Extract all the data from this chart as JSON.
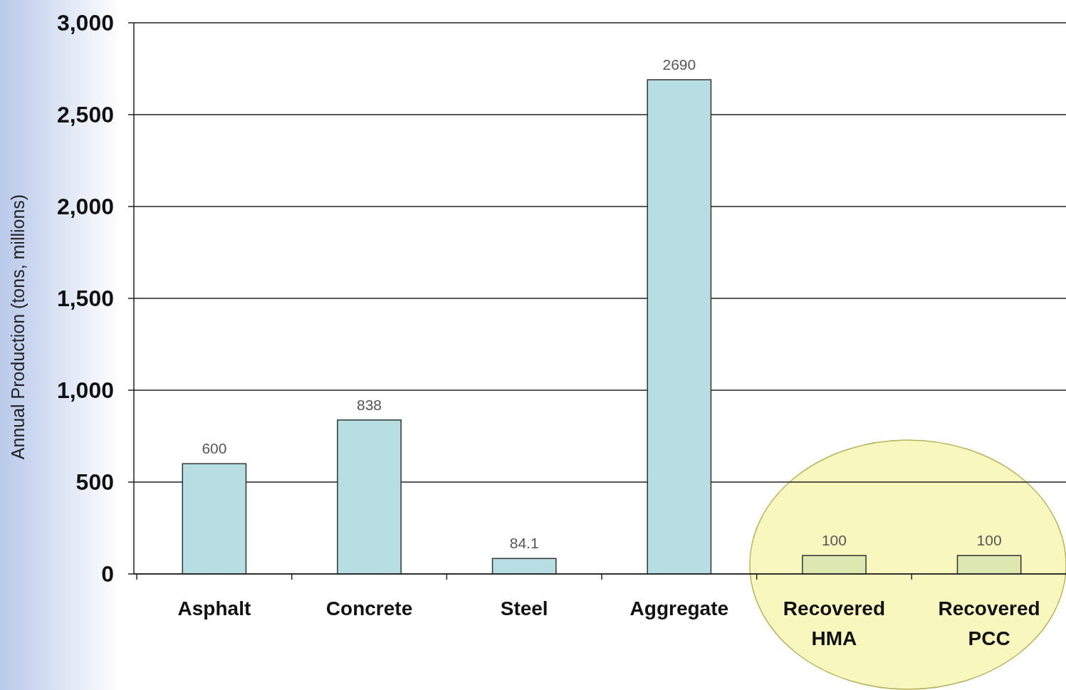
{
  "chart_data": {
    "type": "bar",
    "ylabel": "Annual Production (tons, millions)",
    "categories": [
      "Asphalt",
      "Concrete",
      "Steel",
      "Aggregate",
      "Recovered HMA",
      "Recovered PCC"
    ],
    "values": [
      600,
      838,
      84.1,
      2690,
      100,
      100
    ],
    "colors": [
      "#b7dee2",
      "#b7dee2",
      "#b7dee2",
      "#b7dee2",
      "#dde8b0",
      "#dde8b0"
    ],
    "ylim": [
      0,
      3000
    ],
    "yticks": [
      0,
      500,
      {
        "value": 1000,
        "label": "1,000"
      },
      {
        "value": 1500,
        "label": "1,500"
      },
      {
        "value": 2000,
        "label": "2,000"
      },
      {
        "value": 2500,
        "label": "2,500"
      },
      {
        "value": 3000,
        "label": "3,000"
      }
    ],
    "grid": "y",
    "data_labels": true
  }
}
